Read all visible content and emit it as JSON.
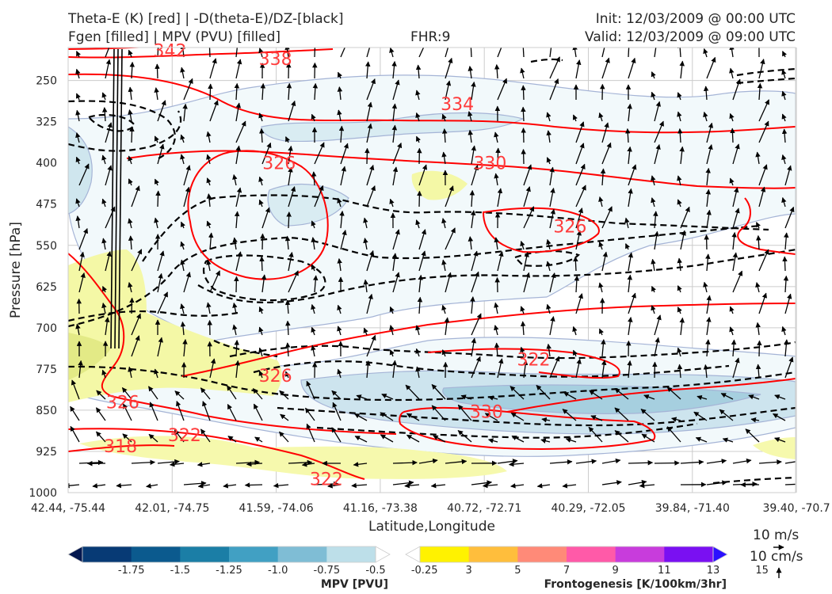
{
  "header": {
    "title_line1": "Theta-E (K) [red] | -D(theta-E)/DZ-[black]",
    "title_line2": "Fgen [filled] | MPV (PVU) [filled]",
    "fhr": "FHR:9",
    "init": "Init: 12/03/2009 @ 00:00 UTC",
    "valid": "Valid: 12/03/2009 @ 09:00 UTC"
  },
  "chart_data": {
    "type": "cross-section",
    "xlabel": "Latitude,Longitude",
    "ylabel": "Pressure [hPa]",
    "x_ticks": [
      "42.44, -75.44",
      "42.01, -74.75",
      "41.59, -74.06",
      "41.16, -73.38",
      "40.72, -72.71",
      "40.29, -72.05",
      "39.84, -71.40",
      "39.40, -70.7"
    ],
    "y_ticks": [
      250,
      325,
      400,
      475,
      550,
      625,
      700,
      775,
      850,
      925,
      1000
    ],
    "ylim": [
      1000,
      190
    ],
    "grid": true,
    "theta_e_contours": {
      "color": "#ff0000",
      "labels": [
        {
          "text": "342",
          "x": 0.14,
          "p": 195
        },
        {
          "text": "338",
          "x": 0.285,
          "p": 210
        },
        {
          "text": "334",
          "x": 0.535,
          "p": 292
        },
        {
          "text": "330",
          "x": 0.58,
          "p": 400
        },
        {
          "text": "326",
          "x": 0.29,
          "p": 400
        },
        {
          "text": "326",
          "x": 0.69,
          "p": 515
        },
        {
          "text": "326",
          "x": 0.285,
          "p": 787
        },
        {
          "text": "322",
          "x": 0.64,
          "p": 757
        },
        {
          "text": "330",
          "x": 0.575,
          "p": 852
        },
        {
          "text": "326",
          "x": 0.075,
          "p": 835
        },
        {
          "text": "322",
          "x": 0.16,
          "p": 895
        },
        {
          "text": "318",
          "x": 0.072,
          "p": 915
        },
        {
          "text": "322",
          "x": 0.355,
          "p": 975
        }
      ]
    },
    "dthetae_dz_contours": {
      "color": "#000000",
      "style": "dashed"
    },
    "mpv_colorbar": {
      "label": "MPV [PVU]",
      "ticks": [
        "-1.75",
        "-1.5",
        "-1.25",
        "-1.0",
        "-0.75",
        "-0.5",
        "-0.25"
      ],
      "colors": [
        "#03174f",
        "#073a75",
        "#0b5a8e",
        "#1b7ea6",
        "#41a0c3",
        "#7fbdd5",
        "#bddfe9",
        "#ffffff"
      ]
    },
    "fgen_colorbar": {
      "label": "Frontogenesis [K/100km/3hr]",
      "ticks": [
        "3",
        "5",
        "7",
        "9",
        "11",
        "13",
        "15"
      ],
      "colors": [
        "#ffffff",
        "#fff200",
        "#ffbe3c",
        "#ff8a78",
        "#ff5aa8",
        "#c83cdc",
        "#7a10f2",
        "#2a10ff"
      ]
    },
    "wind_key": {
      "horizontal": "10 m/s",
      "vertical": "10 cm/s"
    }
  }
}
